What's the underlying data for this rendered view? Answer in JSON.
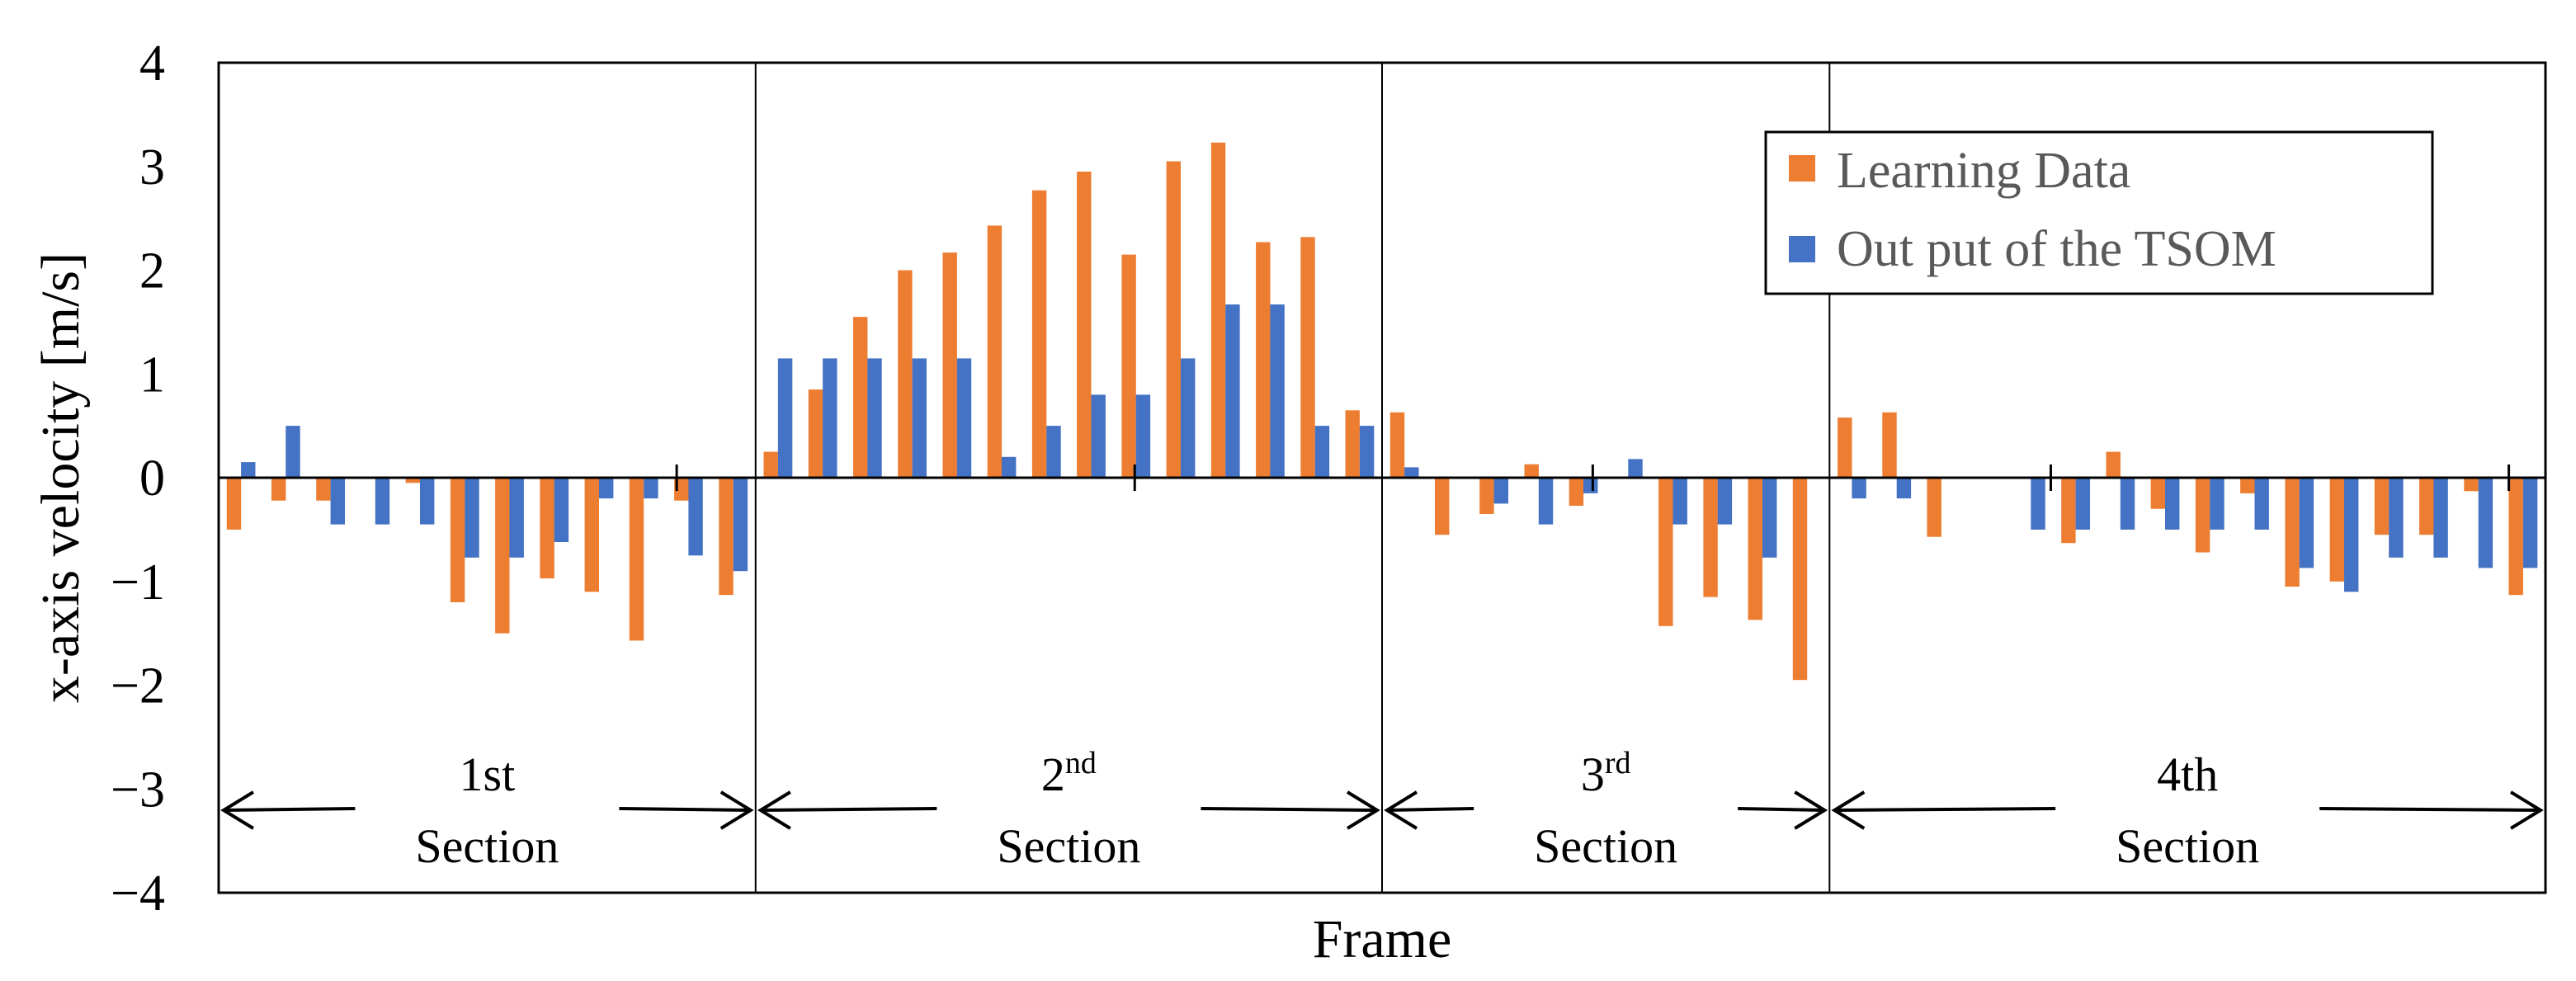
{
  "chart_data": {
    "type": "bar",
    "title": "",
    "xlabel": "Frame",
    "ylabel": "x-axis velocity [m/s]",
    "ylim": [
      -4,
      4
    ],
    "yticks": [
      "4",
      "3",
      "2",
      "1",
      "0",
      "−1",
      "−2",
      "−3",
      "−4"
    ],
    "ytick_values": [
      4,
      3,
      2,
      1,
      0,
      -1,
      -2,
      -3,
      -4
    ],
    "grid": false,
    "legend_position": "top-right",
    "colors": {
      "learning": "#ED7D31",
      "tsom": "#4472C4"
    },
    "series": [
      {
        "name": "Learning Data",
        "values": [
          -0.5,
          -0.22,
          -0.22,
          0,
          -0.05,
          -1.2,
          -1.5,
          -0.97,
          -1.1,
          -1.57,
          -0.22,
          -1.13,
          0.25,
          0.85,
          1.55,
          2.0,
          2.17,
          2.43,
          2.77,
          2.95,
          2.15,
          3.05,
          3.23,
          2.27,
          2.32,
          0.65,
          0.63,
          -0.55,
          -0.35,
          0.13,
          -0.27,
          0,
          -1.43,
          -1.15,
          -1.37,
          -1.95,
          0.58,
          0.63,
          -0.57,
          0,
          0,
          -0.63,
          0.25,
          -0.3,
          -0.72,
          -0.15,
          -1.05,
          -1.0,
          -0.55,
          -0.55,
          -0.13,
          -1.13
        ]
      },
      {
        "name": "Out put of the TSOM",
        "values": [
          0.15,
          0.5,
          -0.45,
          -0.45,
          -0.45,
          -0.77,
          -0.77,
          -0.62,
          -0.2,
          -0.2,
          -0.75,
          -0.9,
          1.15,
          1.15,
          1.15,
          1.15,
          1.15,
          0.2,
          0.5,
          0.8,
          0.8,
          1.15,
          1.67,
          1.67,
          0.5,
          0.5,
          0.1,
          0,
          -0.25,
          -0.45,
          -0.15,
          0.18,
          -0.45,
          -0.45,
          -0.77,
          0,
          -0.2,
          -0.2,
          0,
          0,
          -0.5,
          -0.5,
          -0.5,
          -0.5,
          -0.5,
          -0.5,
          -0.87,
          -1.1,
          -0.77,
          -0.77,
          -0.87,
          -0.87
        ]
      }
    ],
    "sections": [
      {
        "line1": "1st",
        "sup": "",
        "line2": "Section",
        "start": 0,
        "end": 12
      },
      {
        "line1": "2",
        "sup": "nd",
        "line2": "Section",
        "start": 12,
        "end": 26
      },
      {
        "line1": "3",
        "sup": "rd",
        "line2": "Section",
        "start": 26,
        "end": 36
      },
      {
        "line1": "4th",
        "sup": "",
        "line2": "Section",
        "start": 36,
        "end": 52
      }
    ]
  }
}
